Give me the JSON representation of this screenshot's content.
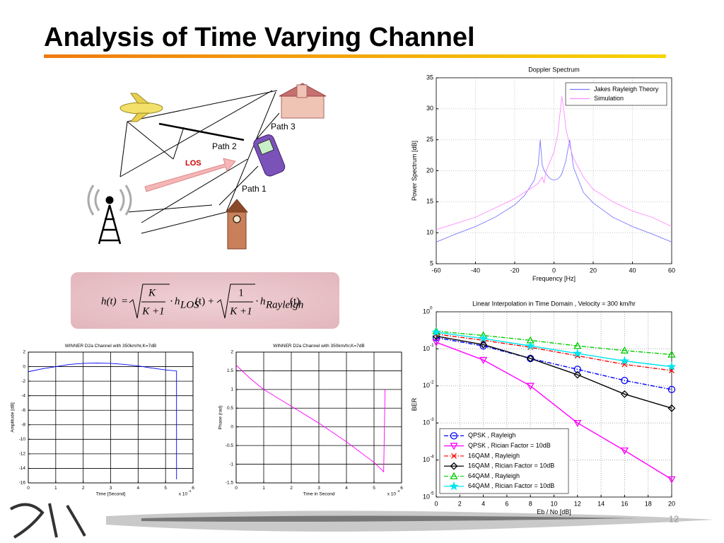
{
  "slide": {
    "title": "Analysis of Time Varying Channel",
    "page_number": "12"
  },
  "diagram": {
    "labels": [
      "Path 3",
      "Path 2",
      "LOS",
      "Path 1"
    ]
  },
  "formula": {
    "lhs": "h(t)",
    "eq": "=",
    "k_num": "K",
    "k_den": "K +1",
    "dot": "·",
    "h_los": "h",
    "los_sub": "LOS",
    "t": "(t)",
    "plus": "+",
    "one_num": "1",
    "k_den2": "K +1",
    "h_ray": "h",
    "ray_sub": "Rayleigh",
    "t2": "(t)"
  },
  "chart_data": [
    {
      "type": "line",
      "title": "Doppler Spectrum",
      "xlabel": "Frequency [Hz]",
      "ylabel": "Power Spectrum [dB]",
      "x": [
        -60,
        -50,
        -40,
        -30,
        -20,
        -15,
        -10,
        -8,
        -7,
        -6,
        -5,
        -4,
        -2,
        0,
        2,
        3,
        4,
        5,
        6,
        8,
        10,
        15,
        20,
        30,
        40,
        50,
        60
      ],
      "series": [
        {
          "name": "Jakes Rayleigh Theory",
          "color": "#7a7aff",
          "dash": "solid",
          "values": [
            8.5,
            9.8,
            11,
            12.5,
            14.5,
            16,
            18.5,
            21,
            25,
            21,
            20,
            19.5,
            18.7,
            18.5,
            18.7,
            19,
            19.5,
            20.5,
            21.5,
            25,
            20.5,
            16.5,
            14.8,
            12.5,
            11,
            9.8,
            8.5
          ]
        },
        {
          "name": "Simulation",
          "color": "#ff8cff",
          "dash": "solid",
          "values": [
            10.5,
            11.5,
            12.5,
            14,
            15.5,
            16.5,
            17.5,
            18,
            18.5,
            19,
            18,
            20,
            21.5,
            23,
            26,
            29,
            32,
            30,
            27,
            24,
            22,
            19,
            17,
            15,
            13.5,
            12.5,
            11
          ]
        }
      ],
      "xlim": [
        -60,
        60
      ],
      "xticks": [
        -60,
        -40,
        -20,
        0,
        20,
        40,
        60
      ],
      "ylim": [
        5,
        35
      ],
      "yticks": [
        5,
        10,
        15,
        20,
        25,
        30,
        35
      ],
      "grid": true,
      "legend": "northeast"
    },
    {
      "type": "line",
      "title": "Linear Interpolation in Time Domain , Velocity = 300 km/hr",
      "xlabel": "Eb / No [dB]",
      "ylabel": "BER",
      "x": [
        0,
        4,
        8,
        12,
        16,
        20
      ],
      "series": [
        {
          "name": "QPSK , Rayleigh",
          "color": "#0000ff",
          "dash": "dashdot",
          "marker": "circle",
          "values": [
            0.2,
            0.12,
            0.055,
            0.028,
            0.014,
            0.008
          ]
        },
        {
          "name": "QPSK , Rician Factor = 10dB",
          "color": "#ff00ff",
          "dash": "solid",
          "marker": "triangle-down",
          "values": [
            0.15,
            0.05,
            0.01,
            0.001,
            0.00018,
            3e-05
          ]
        },
        {
          "name": "16QAM , Rayleigh",
          "color": "#ff0000",
          "dash": "dashdot",
          "marker": "x",
          "values": [
            0.25,
            0.17,
            0.11,
            0.065,
            0.038,
            0.026
          ]
        },
        {
          "name": "16QAM , Rician Factor = 10dB",
          "color": "#000000",
          "dash": "solid",
          "marker": "diamond",
          "values": [
            0.22,
            0.13,
            0.055,
            0.02,
            0.006,
            0.0025
          ]
        },
        {
          "name": "64QAM , Rayleigh",
          "color": "#00cc00",
          "dash": "dashdot",
          "marker": "triangle-up",
          "values": [
            0.3,
            0.23,
            0.17,
            0.12,
            0.09,
            0.07
          ]
        },
        {
          "name": "64QAM , Rician Factor = 10dB",
          "color": "#00e5ee",
          "dash": "solid",
          "marker": "star",
          "values": [
            0.28,
            0.19,
            0.12,
            0.075,
            0.047,
            0.033
          ]
        }
      ],
      "xlim": [
        0,
        20
      ],
      "xticks": [
        0,
        2,
        4,
        6,
        8,
        10,
        12,
        14,
        16,
        18,
        20
      ],
      "ylim": [
        1e-05,
        1
      ],
      "log_y": true,
      "yticks": [
        {
          "value": 1e-05,
          "label": "10",
          "exponent": "-5"
        },
        {
          "value": 0.0001,
          "label": "10",
          "exponent": "-4"
        },
        {
          "value": 0.001,
          "label": "10",
          "exponent": "-3"
        },
        {
          "value": 0.01,
          "label": "10",
          "exponent": "-2"
        },
        {
          "value": 0.1,
          "label": "10",
          "exponent": "-1"
        },
        {
          "value": 1,
          "label": "10",
          "exponent": "0"
        }
      ],
      "grid": true,
      "legend": "southwest"
    },
    {
      "type": "line",
      "title": "WINNER D2a Channel with 350km/hr,K=7dB",
      "xlabel": "Time [Second]",
      "ylabel": "Amplitude [dB]",
      "x_multiplier": {
        "label": "x 10",
        "exponent": "-4"
      },
      "x": [
        0,
        0.5,
        1,
        1.5,
        2,
        2.5,
        3,
        3.5,
        4,
        4.5,
        5,
        5.4,
        5.4
      ],
      "series": [
        {
          "color": "#0000ff",
          "dash": "solid",
          "values": [
            -0.7,
            -0.3,
            0,
            0.3,
            0.45,
            0.5,
            0.45,
            0.3,
            0.1,
            -0.2,
            -0.45,
            -0.6,
            -15.5
          ]
        }
      ],
      "xlim": [
        0,
        6
      ],
      "xticks": [
        0,
        1,
        2,
        3,
        4,
        5,
        6
      ],
      "ylim": [
        -16,
        2
      ],
      "yticks": [
        -16,
        -14,
        -12,
        -10,
        -8,
        -6,
        -4,
        -2,
        0,
        2
      ],
      "grid": true
    },
    {
      "type": "line",
      "title": "WINNER D2a Channel with 350km/hr,K=7dB",
      "xlabel": "Time in Second",
      "ylabel": "Phase (rad)",
      "x_multiplier": {
        "label": "x 10",
        "exponent": "-4"
      },
      "x": [
        0,
        0.5,
        1,
        2,
        3,
        4,
        5,
        5.35,
        5.4
      ],
      "series": [
        {
          "color": "#ff00ff",
          "dash": "solid",
          "values": [
            1.65,
            1.3,
            1.0,
            0.55,
            0.1,
            -0.4,
            -0.95,
            -1.2,
            1.0
          ]
        }
      ],
      "xlim": [
        0,
        6
      ],
      "xticks": [
        0,
        1,
        2,
        3,
        4,
        5,
        6
      ],
      "ylim": [
        -1.5,
        2
      ],
      "yticks": [
        -1.5,
        -1,
        -0.5,
        0,
        0.5,
        1,
        1.5,
        2
      ],
      "grid": true
    }
  ]
}
